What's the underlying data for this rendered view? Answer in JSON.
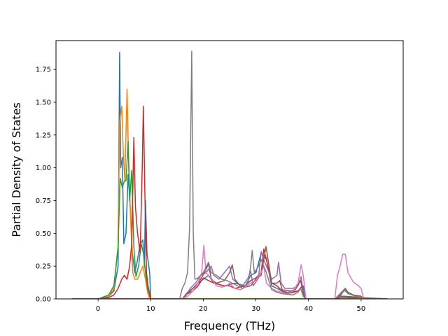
{
  "chart_data": {
    "type": "line",
    "title": "",
    "xlabel": "Frequency (THz)",
    "ylabel": "Partial Density of States",
    "xlim": [
      -8,
      58
    ],
    "ylim": [
      0,
      1.97
    ],
    "xticks": [
      0,
      10,
      20,
      30,
      40,
      50
    ],
    "yticks": [
      0.0,
      0.25,
      0.5,
      0.75,
      1.0,
      1.25,
      1.5,
      1.75
    ],
    "ytick_labels": [
      "0.00",
      "0.25",
      "0.50",
      "0.75",
      "1.00",
      "1.25",
      "1.50",
      "1.75"
    ],
    "grid": false,
    "legend": "none",
    "series": [
      {
        "color": "#1f77b4",
        "points": [
          [
            -5,
            0
          ],
          [
            0,
            0
          ],
          [
            2,
            0.02
          ],
          [
            3,
            0.06
          ],
          [
            3.8,
            0.25
          ],
          [
            4.1,
            1.88
          ],
          [
            4.3,
            1.0
          ],
          [
            4.6,
            1.08
          ],
          [
            4.9,
            0.42
          ],
          [
            5.3,
            0.5
          ],
          [
            5.7,
            0.95
          ],
          [
            6.1,
            0.7
          ],
          [
            6.5,
            0.35
          ],
          [
            7,
            0.2
          ],
          [
            7.5,
            0.3
          ],
          [
            8,
            0.42
          ],
          [
            8.5,
            0.45
          ],
          [
            8.8,
            0.25
          ],
          [
            9.0,
            0.75
          ],
          [
            9.3,
            0.35
          ],
          [
            9.8,
            0.2
          ],
          [
            10,
            0
          ],
          [
            16,
            0
          ],
          [
            16.5,
            0.02
          ],
          [
            17,
            0.05
          ],
          [
            18,
            0.08
          ],
          [
            19,
            0.12
          ],
          [
            20,
            0.15
          ],
          [
            21,
            0.18
          ],
          [
            22,
            0.12
          ],
          [
            24,
            0.1
          ],
          [
            26,
            0.12
          ],
          [
            28,
            0.1
          ],
          [
            29,
            0.18
          ],
          [
            30,
            0.2
          ],
          [
            31,
            0.35
          ],
          [
            32,
            0.3
          ],
          [
            33,
            0.1
          ],
          [
            34,
            0.08
          ],
          [
            35,
            0.06
          ],
          [
            36,
            0.05
          ],
          [
            38,
            0.06
          ],
          [
            39,
            0.1
          ],
          [
            39.5,
            0
          ],
          [
            45,
            0
          ],
          [
            46,
            0.02
          ],
          [
            47,
            0.02
          ],
          [
            50,
            0.01
          ],
          [
            55,
            0
          ]
        ]
      },
      {
        "color": "#ff7f0e",
        "points": [
          [
            -5,
            0
          ],
          [
            0,
            0
          ],
          [
            2,
            0.02
          ],
          [
            3,
            0.08
          ],
          [
            3.8,
            0.4
          ],
          [
            4.1,
            1.35
          ],
          [
            4.5,
            1.47
          ],
          [
            4.8,
            1.1
          ],
          [
            5.1,
            0.9
          ],
          [
            5.5,
            1.6
          ],
          [
            5.8,
            1.05
          ],
          [
            6.2,
            0.6
          ],
          [
            6.6,
            0.2
          ],
          [
            7,
            0.15
          ],
          [
            7.5,
            0.15
          ],
          [
            8,
            0.2
          ],
          [
            8.5,
            0.25
          ],
          [
            9,
            0.15
          ],
          [
            9.4,
            0.05
          ],
          [
            9.8,
            0
          ],
          [
            55,
            0
          ]
        ]
      },
      {
        "color": "#2ca02c",
        "points": [
          [
            -5,
            0
          ],
          [
            0,
            0
          ],
          [
            2,
            0.03
          ],
          [
            3,
            0.1
          ],
          [
            3.8,
            0.4
          ],
          [
            4.2,
            0.92
          ],
          [
            4.6,
            0.85
          ],
          [
            5,
            0.9
          ],
          [
            5.3,
            0.9
          ],
          [
            5.7,
            1.2
          ],
          [
            6.0,
            0.75
          ],
          [
            6.4,
            0.98
          ],
          [
            6.8,
            0.4
          ],
          [
            7.2,
            0.17
          ],
          [
            7.7,
            0.25
          ],
          [
            8.2,
            0.42
          ],
          [
            8.6,
            0.35
          ],
          [
            9.0,
            0.2
          ],
          [
            9.4,
            0.08
          ],
          [
            10,
            0
          ],
          [
            55,
            0
          ]
        ]
      },
      {
        "color": "#d62728",
        "points": [
          [
            -5,
            0
          ],
          [
            0,
            0
          ],
          [
            2,
            0.01
          ],
          [
            3,
            0.03
          ],
          [
            3.8,
            0.08
          ],
          [
            4.5,
            0.15
          ],
          [
            5,
            0.18
          ],
          [
            5.5,
            0.15
          ],
          [
            6,
            0.25
          ],
          [
            6.4,
            0.42
          ],
          [
            6.8,
            1.23
          ],
          [
            7.1,
            0.7
          ],
          [
            7.5,
            0.5
          ],
          [
            8.0,
            0.35
          ],
          [
            8.4,
            1.0
          ],
          [
            8.6,
            1.47
          ],
          [
            8.9,
            0.8
          ],
          [
            9.2,
            0.2
          ],
          [
            9.5,
            0.1
          ],
          [
            10,
            0
          ],
          [
            16,
            0
          ],
          [
            17,
            0.04
          ],
          [
            18,
            0.06
          ],
          [
            19,
            0.1
          ],
          [
            20,
            0.16
          ],
          [
            21,
            0.14
          ],
          [
            22,
            0.12
          ],
          [
            24,
            0.1
          ],
          [
            25,
            0.1
          ],
          [
            26,
            0.08
          ],
          [
            28,
            0.1
          ],
          [
            29,
            0.14
          ],
          [
            30,
            0.16
          ],
          [
            31,
            0.2
          ],
          [
            31.5,
            0.38
          ],
          [
            32,
            0.3
          ],
          [
            33,
            0.12
          ],
          [
            34,
            0.1
          ],
          [
            35,
            0.06
          ],
          [
            36,
            0.04
          ],
          [
            38,
            0.06
          ],
          [
            38.8,
            0.1
          ],
          [
            39.3,
            0
          ],
          [
            45,
            0
          ],
          [
            46,
            0.01
          ],
          [
            50,
            0.01
          ],
          [
            55,
            0
          ]
        ]
      },
      {
        "color": "#9467bd",
        "points": [
          [
            -5,
            0
          ],
          [
            16,
            0
          ],
          [
            16.8,
            0.03
          ],
          [
            17.5,
            0.08
          ],
          [
            18.5,
            0.12
          ],
          [
            19.5,
            0.18
          ],
          [
            20.5,
            0.2
          ],
          [
            21.5,
            0.25
          ],
          [
            22,
            0.18
          ],
          [
            23,
            0.15
          ],
          [
            24,
            0.2
          ],
          [
            25,
            0.25
          ],
          [
            25.6,
            0.15
          ],
          [
            26.5,
            0.12
          ],
          [
            27.5,
            0.1
          ],
          [
            28.5,
            0.16
          ],
          [
            29,
            0.21
          ],
          [
            29.5,
            0.1
          ],
          [
            30.5,
            0.16
          ],
          [
            31,
            0.36
          ],
          [
            31.5,
            0.3
          ],
          [
            32,
            0.25
          ],
          [
            33,
            0.15
          ],
          [
            34,
            0.18
          ],
          [
            34.3,
            0.28
          ],
          [
            34.8,
            0.12
          ],
          [
            35.5,
            0.08
          ],
          [
            37,
            0.08
          ],
          [
            38,
            0.1
          ],
          [
            38.6,
            0.17
          ],
          [
            39,
            0.05
          ],
          [
            39.5,
            0
          ],
          [
            45,
            0
          ],
          [
            46,
            0.02
          ],
          [
            46.5,
            0.05
          ],
          [
            47,
            0.07
          ],
          [
            47.5,
            0.05
          ],
          [
            48.5,
            0.03
          ],
          [
            50,
            0.02
          ],
          [
            50.5,
            0
          ],
          [
            55,
            0
          ]
        ]
      },
      {
        "color": "#8c564b",
        "points": [
          [
            -5,
            0
          ],
          [
            16,
            0
          ],
          [
            16.8,
            0.04
          ],
          [
            17.5,
            0.06
          ],
          [
            18.5,
            0.1
          ],
          [
            19.5,
            0.15
          ],
          [
            20.5,
            0.22
          ],
          [
            21,
            0.27
          ],
          [
            21.5,
            0.15
          ],
          [
            22.5,
            0.12
          ],
          [
            24,
            0.14
          ],
          [
            25,
            0.2
          ],
          [
            25.5,
            0.26
          ],
          [
            26,
            0.15
          ],
          [
            27,
            0.1
          ],
          [
            28,
            0.09
          ],
          [
            29,
            0.1
          ],
          [
            30,
            0.15
          ],
          [
            31,
            0.18
          ],
          [
            31.5,
            0.3
          ],
          [
            31.9,
            0.4
          ],
          [
            32.3,
            0.3
          ],
          [
            33,
            0.12
          ],
          [
            34,
            0.12
          ],
          [
            34.5,
            0.14
          ],
          [
            35,
            0.07
          ],
          [
            36.5,
            0.06
          ],
          [
            37.5,
            0.07
          ],
          [
            38.5,
            0.14
          ],
          [
            39,
            0.04
          ],
          [
            39.5,
            0
          ],
          [
            45,
            0
          ],
          [
            46,
            0.03
          ],
          [
            46.5,
            0.06
          ],
          [
            47,
            0.08
          ],
          [
            47.5,
            0.05
          ],
          [
            48.5,
            0.03
          ],
          [
            50,
            0.02
          ],
          [
            50.5,
            0
          ],
          [
            55,
            0
          ]
        ]
      },
      {
        "color": "#e377c2",
        "points": [
          [
            -5,
            0
          ],
          [
            16,
            0
          ],
          [
            17,
            0.02
          ],
          [
            18,
            0.06
          ],
          [
            19,
            0.12
          ],
          [
            19.7,
            0.2
          ],
          [
            20.1,
            0.41
          ],
          [
            20.5,
            0.2
          ],
          [
            21.5,
            0.16
          ],
          [
            22.5,
            0.1
          ],
          [
            23.5,
            0.09
          ],
          [
            24.5,
            0.1
          ],
          [
            25,
            0.12
          ],
          [
            26,
            0.08
          ],
          [
            27,
            0.07
          ],
          [
            28,
            0.09
          ],
          [
            29,
            0.12
          ],
          [
            30,
            0.14
          ],
          [
            31,
            0.2
          ],
          [
            31.5,
            0.25
          ],
          [
            32,
            0.12
          ],
          [
            33,
            0.08
          ],
          [
            34,
            0.06
          ],
          [
            35,
            0.05
          ],
          [
            36,
            0.04
          ],
          [
            37,
            0.06
          ],
          [
            38,
            0.12
          ],
          [
            38.6,
            0.26
          ],
          [
            39,
            0.18
          ],
          [
            39.5,
            0
          ],
          [
            45,
            0
          ],
          [
            45.5,
            0.18
          ],
          [
            46,
            0.25
          ],
          [
            46.5,
            0.34
          ],
          [
            47,
            0.34
          ],
          [
            47.5,
            0.2
          ],
          [
            48.5,
            0.13
          ],
          [
            49.5,
            0.1
          ],
          [
            50,
            0.08
          ],
          [
            50.5,
            0
          ],
          [
            55,
            0
          ]
        ]
      },
      {
        "color": "#7f7f7f",
        "points": [
          [
            -5,
            0
          ],
          [
            15.5,
            0
          ],
          [
            16,
            0.08
          ],
          [
            16.5,
            0.12
          ],
          [
            17,
            0.2
          ],
          [
            17.4,
            0.55
          ],
          [
            17.8,
            1.89
          ],
          [
            18.1,
            0.5
          ],
          [
            18.4,
            0.15
          ],
          [
            19,
            0.16
          ],
          [
            20,
            0.2
          ],
          [
            21,
            0.28
          ],
          [
            21.5,
            0.2
          ],
          [
            22.5,
            0.18
          ],
          [
            23.5,
            0.15
          ],
          [
            24.5,
            0.14
          ],
          [
            25.5,
            0.12
          ],
          [
            26.5,
            0.1
          ],
          [
            27.5,
            0.08
          ],
          [
            28.5,
            0.12
          ],
          [
            29,
            0.25
          ],
          [
            29.3,
            0.37
          ],
          [
            29.7,
            0.2
          ],
          [
            30.5,
            0.25
          ],
          [
            31,
            0.3
          ],
          [
            31.5,
            0.25
          ],
          [
            32,
            0.2
          ],
          [
            33,
            0.07
          ],
          [
            34,
            0.05
          ],
          [
            35,
            0.04
          ],
          [
            37,
            0.03
          ],
          [
            38,
            0.05
          ],
          [
            38.5,
            0.08
          ],
          [
            39,
            0.02
          ],
          [
            39.5,
            0
          ],
          [
            45,
            0
          ],
          [
            46,
            0.04
          ],
          [
            46.7,
            0.07
          ],
          [
            47.5,
            0.04
          ],
          [
            49,
            0.02
          ],
          [
            50,
            0.01
          ],
          [
            55,
            0
          ]
        ]
      }
    ]
  }
}
